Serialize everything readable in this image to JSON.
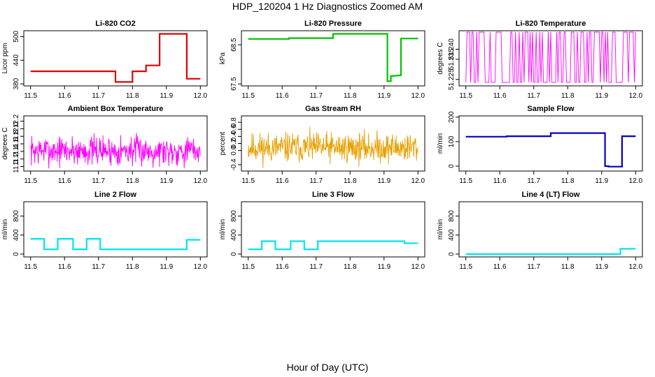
{
  "page": {
    "title": "HDP_120204  1 Hz Diagnostics Zoomed AM",
    "xlabel": "Hour of Day (UTC)"
  },
  "chart_data": [
    {
      "type": "line",
      "title": "Li-820 CO2",
      "ylabel": "Licor ppm",
      "xlim": [
        11.48,
        12.02
      ],
      "ylim": [
        375,
        515
      ],
      "xticks": [
        "11.5",
        "11.6",
        "11.7",
        "11.8",
        "11.9",
        "12.0"
      ],
      "yticks": [
        "380",
        "440",
        "500"
      ],
      "color": "#e00000",
      "step": true,
      "series": [
        {
          "x": [
            11.5,
            11.75,
            11.75,
            11.8,
            11.8,
            11.84,
            11.84,
            11.88,
            11.88,
            11.96,
            11.96,
            12.0
          ],
          "y": [
            412,
            412,
            385,
            385,
            412,
            412,
            427,
            427,
            507,
            507,
            393,
            393
          ]
        }
      ]
    },
    {
      "type": "line",
      "title": "Li-820 Pressure",
      "ylabel": "kPa",
      "xlim": [
        11.48,
        12.02
      ],
      "ylim": [
        67.45,
        68.86
      ],
      "xticks": [
        "11.5",
        "11.6",
        "11.7",
        "11.8",
        "11.9",
        "12.0"
      ],
      "yticks": [
        "67.5",
        "68.5"
      ],
      "color": "#00c000",
      "step": true,
      "series": [
        {
          "x": [
            11.5,
            11.62,
            11.62,
            11.75,
            11.75,
            11.91,
            11.91,
            11.92,
            11.92,
            11.95,
            11.95,
            12.0
          ],
          "y": [
            68.65,
            68.65,
            68.67,
            68.67,
            68.78,
            68.78,
            67.57,
            67.57,
            67.7,
            67.72,
            68.66,
            68.66
          ]
        }
      ]
    },
    {
      "type": "line",
      "title": "Li-820 Temperature",
      "ylabel": "degrees C",
      "xlim": [
        11.48,
        12.02
      ],
      "ylim": [
        51.2218,
        51.2492
      ],
      "xticks": [
        "11.5",
        "11.6",
        "11.7",
        "11.8",
        "11.9",
        "12.0"
      ],
      "yticks": [
        "51.225",
        "51.235",
        "51.240"
      ],
      "color": "#ff00ff",
      "noise": true,
      "seed": 3,
      "count": 140,
      "mode": "binary",
      "series": [
        {
          "low": 51.2235,
          "high": 51.2485
        }
      ]
    },
    {
      "type": "line",
      "title": "Ambient Box Temperature",
      "ylabel": "degrees C",
      "xlim": [
        11.48,
        12.02
      ],
      "ylim": [
        10.88,
        12.34
      ],
      "xticks": [
        "11.5",
        "11.6",
        "11.7",
        "11.8",
        "11.9",
        "12.0"
      ],
      "yticks": [
        "11.0",
        "11.2",
        "11.4",
        "11.6",
        "11.8",
        "12.0",
        "12.2"
      ],
      "color": "#ff00ff",
      "noise": true,
      "seed": 7,
      "count": 420,
      "mode": "gauss",
      "series": [
        {
          "center": 11.42,
          "spread": 0.28,
          "low": 10.95,
          "high": 12.2
        }
      ]
    },
    {
      "type": "line",
      "title": "Gas Stream RH",
      "ylabel": "percent",
      "xlim": [
        11.48,
        12.02
      ],
      "ylim": [
        -0.58,
        0.98
      ],
      "xticks": [
        "11.5",
        "11.6",
        "11.7",
        "11.8",
        "11.9",
        "12.0"
      ],
      "yticks": [
        "-0.4",
        "0.0",
        "0.2",
        "0.4",
        "0.6",
        "0.8"
      ],
      "color": "#e8a000",
      "noise": true,
      "seed": 11,
      "count": 460,
      "mode": "gauss",
      "series": [
        {
          "center": 0.08,
          "spread": 0.3,
          "low": -0.55,
          "high": 0.92
        }
      ]
    },
    {
      "type": "line",
      "title": "Sample Flow",
      "ylabel": "ml/min",
      "xlim": [
        11.48,
        12.02
      ],
      "ylim": [
        -20,
        205
      ],
      "xticks": [
        "11.5",
        "11.6",
        "11.7",
        "11.8",
        "11.9",
        "12.0"
      ],
      "yticks": [
        "0",
        "100",
        "200"
      ],
      "color": "#0000cc",
      "step": true,
      "series": [
        {
          "x": [
            11.5,
            11.62,
            11.62,
            11.75,
            11.75,
            11.91,
            11.91,
            11.92,
            11.92,
            11.96,
            11.96,
            12.0
          ],
          "y": [
            120,
            120,
            122,
            122,
            135,
            135,
            0,
            0,
            -2,
            -2,
            122,
            122
          ]
        }
      ]
    },
    {
      "type": "line",
      "title": "Line 2 Flow",
      "ylabel": "ml/min",
      "xlim": [
        11.48,
        12.02
      ],
      "ylim": [
        -60,
        1100
      ],
      "xticks": [
        "11.5",
        "11.6",
        "11.7",
        "11.8",
        "11.9",
        "12.0"
      ],
      "yticks": [
        "0",
        "400",
        "800"
      ],
      "color": "#00e5ee",
      "step": true,
      "series": [
        {
          "x": [
            11.5,
            11.54,
            11.54,
            11.58,
            11.58,
            11.625,
            11.625,
            11.665,
            11.665,
            11.705,
            11.705,
            11.96,
            11.96,
            12.0
          ],
          "y": [
            320,
            320,
            100,
            100,
            320,
            320,
            100,
            100,
            320,
            320,
            100,
            100,
            300,
            300
          ]
        }
      ]
    },
    {
      "type": "line",
      "title": "Line 3 Flow",
      "ylabel": "ml/min",
      "xlim": [
        11.48,
        12.02
      ],
      "ylim": [
        -60,
        1100
      ],
      "xticks": [
        "11.5",
        "11.6",
        "11.7",
        "11.8",
        "11.9",
        "12.0"
      ],
      "yticks": [
        "0",
        "400",
        "800"
      ],
      "color": "#00e5ee",
      "step": true,
      "series": [
        {
          "x": [
            11.5,
            11.54,
            11.54,
            11.58,
            11.58,
            11.625,
            11.625,
            11.665,
            11.665,
            11.705,
            11.705,
            11.96,
            11.96,
            12.0
          ],
          "y": [
            100,
            100,
            270,
            270,
            100,
            100,
            270,
            270,
            100,
            100,
            270,
            270,
            230,
            230
          ]
        }
      ]
    },
    {
      "type": "line",
      "title": "Line 4 (LT) Flow",
      "ylabel": "ml/min",
      "xlim": [
        11.48,
        12.02
      ],
      "ylim": [
        -60,
        1100
      ],
      "xticks": [
        "11.5",
        "11.6",
        "11.7",
        "11.8",
        "11.9",
        "12.0"
      ],
      "yticks": [
        "0",
        "400",
        "800"
      ],
      "color": "#00e5ee",
      "step": true,
      "series": [
        {
          "x": [
            11.5,
            11.955,
            11.955,
            12.0
          ],
          "y": [
            0,
            0,
            110,
            110
          ]
        }
      ]
    }
  ]
}
